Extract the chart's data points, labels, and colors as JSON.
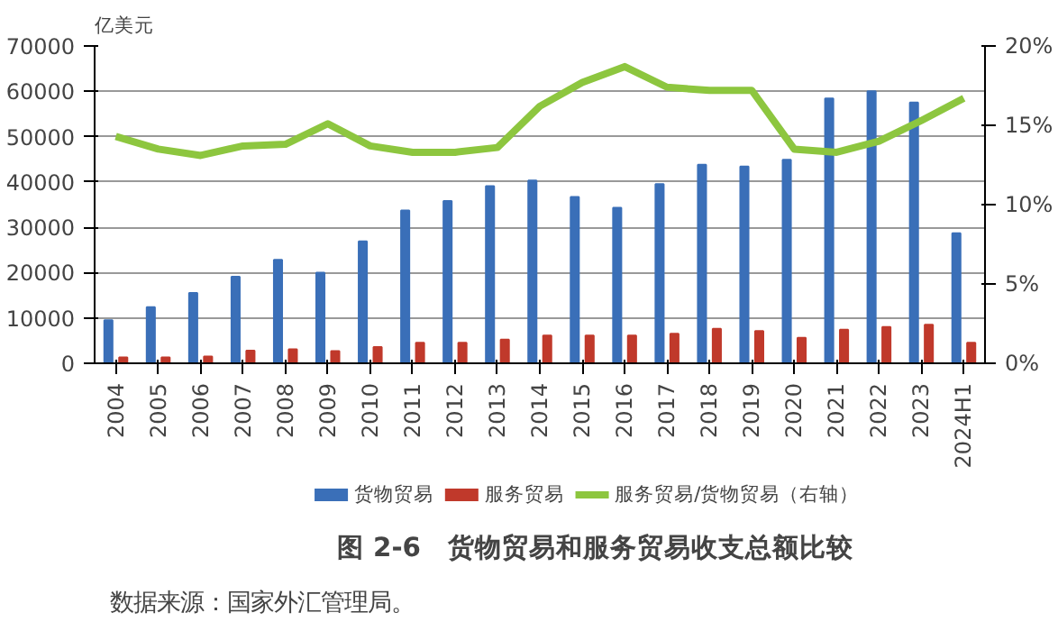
{
  "chart_data": {
    "type": "bar",
    "title": "图 2-6　货物贸易和服务贸易收支总额比较",
    "ylabel": "亿美元",
    "annotations": [
      "数据来源：国家外汇管理局。"
    ],
    "categories": [
      "2004",
      "2005",
      "2006",
      "2007",
      "2008",
      "2009",
      "2010",
      "2011",
      "2012",
      "2013",
      "2014",
      "2015",
      "2016",
      "2017",
      "2018",
      "2019",
      "2020",
      "2021",
      "2022",
      "2023",
      "2024H1"
    ],
    "series": [
      {
        "name": "货物贸易",
        "color": "#3a6fb8",
        "values": [
          9500,
          12400,
          15500,
          19100,
          22800,
          20000,
          26900,
          33700,
          35800,
          39100,
          40300,
          36700,
          34300,
          39500,
          43800,
          43400,
          44900,
          58400,
          60000,
          57500,
          28700
        ]
      },
      {
        "name": "服务贸易",
        "color": "#c0392b",
        "values": [
          1300,
          1300,
          1500,
          2800,
          3100,
          2700,
          3600,
          4500,
          4500,
          5200,
          6100,
          6100,
          6100,
          6500,
          7600,
          7100,
          5600,
          7400,
          8000,
          8500,
          4500
        ]
      },
      {
        "name": "服务贸易/货物贸易（右轴）",
        "type": "line",
        "axis": "y2",
        "color": "#8dc63f",
        "values": [
          14.3,
          13.5,
          13.1,
          13.7,
          13.8,
          15.1,
          13.7,
          13.3,
          13.3,
          13.6,
          16.2,
          17.7,
          18.7,
          17.4,
          17.2,
          17.2,
          13.5,
          13.3,
          14.0,
          15.3,
          16.7
        ]
      }
    ],
    "ylim": [
      0,
      70000
    ],
    "yticks": [
      0,
      10000,
      20000,
      30000,
      40000,
      50000,
      60000,
      70000
    ],
    "y2lim": [
      0,
      20
    ],
    "y2ticks": [
      {
        "value": 0,
        "label": "0%"
      },
      {
        "value": 5,
        "label": "5%"
      },
      {
        "value": 10,
        "label": "10%"
      },
      {
        "value": 15,
        "label": "15%"
      },
      {
        "value": 20,
        "label": "20%"
      }
    ],
    "grid": "y",
    "legend": "bottom"
  }
}
